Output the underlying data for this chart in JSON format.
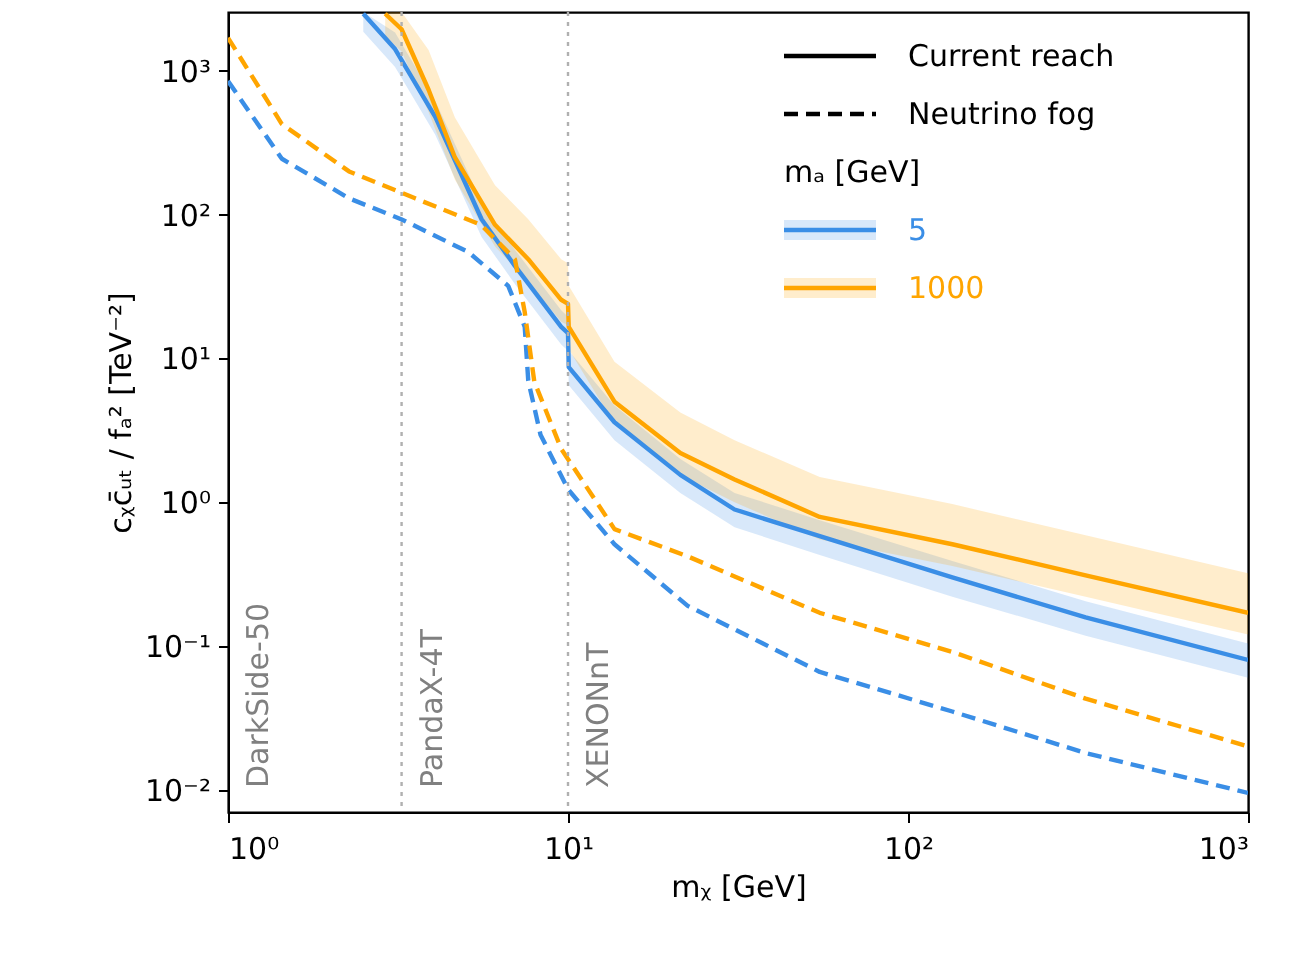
{
  "chart_data": {
    "type": "line",
    "xlabel": "mᵪ [GeV]",
    "ylabel": "cᵪc̄ᵤₜ / fₐ² [TeV⁻²]",
    "legend_title": "mₐ [GeV]",
    "annotations": [
      "Current reach",
      "Neutrino fog",
      "DarkSide-50"
    ],
    "log": "xy",
    "grid": false,
    "legend": "top right",
    "marker": "none",
    "xlim": [
      1,
      1000
    ],
    "ylim": [
      0.007,
      2570
    ],
    "xticks": [
      {
        "value": 1,
        "label": "10⁰"
      },
      {
        "value": 10,
        "label": "10¹"
      },
      {
        "value": 100,
        "label": "10²"
      },
      {
        "value": 1000,
        "label": "10³"
      }
    ],
    "yticks": [
      {
        "value": 0.01,
        "label": "10⁻²"
      },
      {
        "value": 0.1,
        "label": "10⁻¹"
      },
      {
        "value": 1,
        "label": "10⁰"
      },
      {
        "value": 10,
        "label": "10¹"
      },
      {
        "value": 100,
        "label": "10²"
      },
      {
        "value": 1000,
        "label": "10³"
      }
    ],
    "ref_lines": [
      {
        "axis": "x",
        "value": 3.24,
        "label": "PandaX-4T",
        "color": "#b0b0b0",
        "line_style": "dotted"
      },
      {
        "axis": "x",
        "value": 10,
        "label": "XENONnT",
        "color": "#b0b0b0",
        "line_style": "dotted"
      }
    ],
    "series": [
      {
        "name": "5",
        "color": "#3a8ee6",
        "line_style": "solid",
        "x": [
          2.5,
          3.1,
          4.07,
          5.57,
          6.98,
          9.55,
          10,
          10.05,
          13.7,
          21.4,
          30.9,
          55,
          135,
          333,
          1000
        ],
        "values": [
          2500,
          1420,
          480,
          93,
          44,
          16.6,
          15,
          8.7,
          3.6,
          1.55,
          0.89,
          0.58,
          0.3,
          0.158,
          0.08
        ],
        "lower": [
          1875,
          1065,
          360,
          70,
          33,
          12.5,
          11.3,
          6.5,
          2.7,
          1.16,
          0.67,
          0.43,
          0.22,
          0.118,
          0.06
        ],
        "upper": [
          2570,
          1850,
          620,
          121,
          57,
          21.6,
          19.5,
          11.3,
          4.7,
          2.0,
          1.16,
          0.75,
          0.39,
          0.205,
          0.104
        ]
      },
      {
        "name": "1000",
        "color": "#ffa500",
        "line_style": "solid",
        "x": [
          2.9,
          3.24,
          3.89,
          4.65,
          6.1,
          7.64,
          9.55,
          10,
          10.05,
          13.7,
          21.4,
          30.9,
          55,
          135,
          333,
          1000
        ],
        "values": [
          2500,
          1950,
          740,
          250,
          85,
          49,
          25.6,
          24,
          16.6,
          5.0,
          2.2,
          1.44,
          0.79,
          0.51,
          0.31,
          0.17
        ],
        "lower": [
          1750,
          1365,
          518,
          175,
          60,
          34,
          18,
          17,
          11.6,
          3.5,
          1.54,
          1.0,
          0.55,
          0.36,
          0.22,
          0.12
        ],
        "upper": [
          2570,
          2570,
          1400,
          475,
          160,
          93,
          49,
          46,
          32,
          9.5,
          4.2,
          2.7,
          1.5,
          0.97,
          0.59,
          0.32
        ]
      },
      {
        "color": "#3a8ee6",
        "line_style": "dashed",
        "x": [
          1,
          1.44,
          2.27,
          3.23,
          5.09,
          6.67,
          7.46,
          7.64,
          8.3,
          10,
          13.7,
          22.5,
          55,
          135,
          333,
          1000
        ],
        "values": [
          850,
          245,
          130,
          93,
          55,
          32,
          16.6,
          7.0,
          2.95,
          1.23,
          0.51,
          0.19,
          0.066,
          0.035,
          0.018,
          0.0095
        ]
      },
      {
        "color": "#ffa500",
        "line_style": "dashed",
        "x": [
          1,
          1.44,
          2.27,
          3.55,
          5.55,
          6.98,
          7.46,
          7.96,
          9.55,
          13.7,
          22.5,
          55,
          135,
          333,
          1000
        ],
        "values": [
          1700,
          427,
          200,
          130,
          85,
          49,
          21,
          6.9,
          2.35,
          0.65,
          0.42,
          0.17,
          0.091,
          0.043,
          0.02
        ]
      }
    ]
  }
}
